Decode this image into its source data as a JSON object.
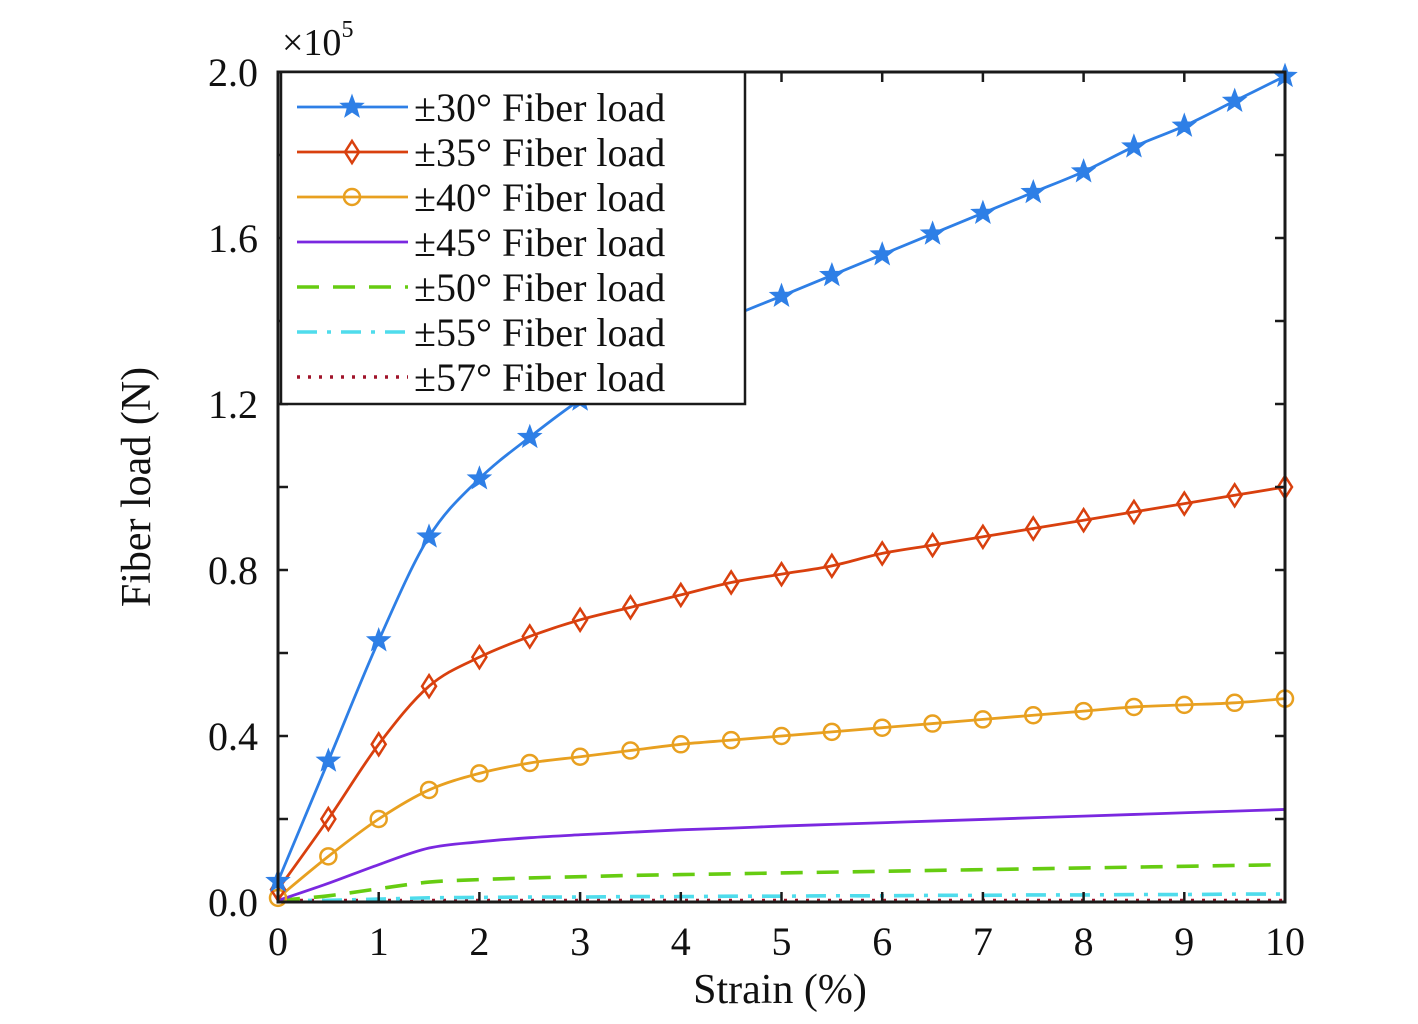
{
  "chart_data": {
    "type": "line",
    "title": "",
    "xlabel": "Strain (%)",
    "ylabel": "Fiber load (N)",
    "y_multiplier_label": "×10",
    "y_multiplier_exponent": "5",
    "xlim": [
      0,
      10
    ],
    "ylim": [
      0,
      2.0
    ],
    "y_units_scale": 100000,
    "x_ticks": [
      0,
      1,
      2,
      3,
      4,
      5,
      6,
      7,
      8,
      9,
      10
    ],
    "x_tick_labels": [
      "0",
      "1",
      "2",
      "3",
      "4",
      "5",
      "6",
      "7",
      "8",
      "9",
      "10"
    ],
    "y_ticks": [
      0,
      0.2,
      0.4,
      0.6,
      0.8,
      1.0,
      1.2,
      1.4,
      1.6,
      1.8,
      2.0
    ],
    "y_tick_labels": [
      "0.0",
      "",
      "0.4",
      "",
      "0.8",
      "",
      "1.2",
      "",
      "1.6",
      "",
      "2.0"
    ],
    "grid": false,
    "legend_position": "top-left",
    "x": [
      0,
      0.5,
      1,
      1.5,
      2,
      2.5,
      3,
      3.5,
      4,
      4.5,
      5,
      5.5,
      6,
      6.5,
      7,
      7.5,
      8,
      8.5,
      9,
      9.5,
      10
    ],
    "series": [
      {
        "name": "±30° Fiber load",
        "color": "#2e7fe6",
        "line_style": "solid",
        "marker": "star",
        "values": [
          0.05,
          0.34,
          0.63,
          0.88,
          1.02,
          1.12,
          1.21,
          1.28,
          1.35,
          1.41,
          1.46,
          1.51,
          1.56,
          1.61,
          1.66,
          1.71,
          1.76,
          1.82,
          1.87,
          1.93,
          1.99
        ]
      },
      {
        "name": "±35° Fiber load",
        "color": "#d9400e",
        "line_style": "solid",
        "marker": "diamond",
        "values": [
          0.03,
          0.2,
          0.38,
          0.52,
          0.59,
          0.64,
          0.68,
          0.71,
          0.74,
          0.77,
          0.79,
          0.81,
          0.84,
          0.86,
          0.88,
          0.9,
          0.92,
          0.94,
          0.96,
          0.98,
          1.0
        ]
      },
      {
        "name": "±40° Fiber load",
        "color": "#e8a020",
        "line_style": "solid",
        "marker": "circle",
        "values": [
          0.01,
          0.11,
          0.2,
          0.27,
          0.31,
          0.335,
          0.35,
          0.365,
          0.38,
          0.39,
          0.4,
          0.41,
          0.42,
          0.43,
          0.44,
          0.45,
          0.46,
          0.47,
          0.475,
          0.48,
          0.49
        ]
      },
      {
        "name": "±45° Fiber load",
        "color": "#7a28e0",
        "line_style": "solid",
        "marker": "none",
        "values": [
          0.0,
          0.045,
          0.09,
          0.13,
          0.145,
          0.155,
          0.162,
          0.168,
          0.174,
          0.178,
          0.183,
          0.187,
          0.191,
          0.195,
          0.199,
          0.203,
          0.207,
          0.211,
          0.215,
          0.219,
          0.223
        ]
      },
      {
        "name": "±50° Fiber load",
        "color": "#66cc11",
        "line_style": "dashed",
        "marker": "none",
        "values": [
          0.0,
          0.015,
          0.032,
          0.048,
          0.054,
          0.058,
          0.061,
          0.064,
          0.066,
          0.068,
          0.07,
          0.072,
          0.074,
          0.076,
          0.078,
          0.08,
          0.082,
          0.084,
          0.086,
          0.088,
          0.09
        ]
      },
      {
        "name": "±55° Fiber load",
        "color": "#4fdcec",
        "line_style": "dashdot",
        "marker": "none",
        "values": [
          0.0,
          0.004,
          0.007,
          0.01,
          0.011,
          0.012,
          0.012,
          0.013,
          0.013,
          0.014,
          0.014,
          0.015,
          0.015,
          0.016,
          0.016,
          0.017,
          0.017,
          0.018,
          0.018,
          0.019,
          0.019
        ]
      },
      {
        "name": "±57° Fiber load",
        "color": "#a0142a",
        "line_style": "dotted",
        "marker": "none",
        "values": [
          0.0,
          0.0,
          0.0,
          0.0,
          0.0,
          0.0,
          0.0,
          0.0,
          0.0,
          0.0,
          0.0,
          0.0,
          0.0,
          0.0,
          0.0,
          0.0,
          0.0,
          0.0,
          0.0,
          0.0,
          0.0
        ]
      }
    ]
  }
}
